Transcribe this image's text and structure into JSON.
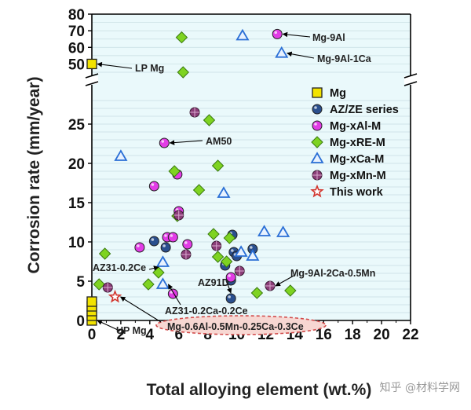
{
  "watermark": "知乎 @材料学网",
  "colors": {
    "plot_bg": "#eaf9fb",
    "grid": "#c7dde2",
    "axis": "#000000",
    "mg": "#f2e300",
    "az": "#2a4f8e",
    "mgal": "#e23ce6",
    "mgre": "#7ed321",
    "mgca": "#2a6fd6",
    "mgmn": "#8b3d78",
    "thiswork": "#d2352d",
    "ellipse": "#d24d4d",
    "ellipse_fill": "#f7d7d2"
  },
  "chart_data": {
    "type": "scatter",
    "xlabel": "Total alloying element (wt.%)",
    "ylabel": "Corrosion rate (mm/year)",
    "xlim": [
      0,
      22
    ],
    "x_ticks": [
      "0",
      "2",
      "4",
      "6",
      "8",
      "10",
      "12",
      "14",
      "16",
      "18",
      "20",
      "22"
    ],
    "ylim_lower": [
      0,
      29
    ],
    "ylim_upper": [
      45,
      80
    ],
    "y_ticks_lower": [
      "0",
      "5",
      "10",
      "15",
      "20",
      "25"
    ],
    "y_ticks_upper": [
      "50",
      "60",
      "70",
      "80"
    ],
    "axis_break": true,
    "grid": true,
    "legend_position": "right-upper",
    "series": [
      {
        "name": "Mg",
        "marker": "square",
        "color_key": "mg",
        "points": [
          [
            0,
            0
          ],
          [
            0,
            0.6
          ],
          [
            0,
            1.2
          ],
          [
            0,
            1.8
          ],
          [
            0,
            2.4
          ],
          [
            0,
            50
          ]
        ]
      },
      {
        "name": "AZ/ZE series",
        "marker": "circle",
        "color_key": "az",
        "points": [
          [
            4.3,
            10.1
          ],
          [
            5.1,
            9.3
          ],
          [
            9.2,
            7
          ],
          [
            9.7,
            10.9
          ],
          [
            9.8,
            8.7
          ],
          [
            10.0,
            8.2
          ],
          [
            11.1,
            9.1
          ],
          [
            9.6,
            5.1
          ],
          [
            9.6,
            2.8
          ]
        ]
      },
      {
        "name": "Mg-xAl-M",
        "marker": "circle",
        "color_key": "mgal",
        "points": [
          [
            3.3,
            9.3
          ],
          [
            4.3,
            17.1
          ],
          [
            5.2,
            10.6
          ],
          [
            5.6,
            10.6
          ],
          [
            6.0,
            13.9
          ],
          [
            5.9,
            18.6
          ],
          [
            5.0,
            22.6
          ],
          [
            6.6,
            9.7
          ],
          [
            5.6,
            3.4
          ],
          [
            9.6,
            5.5
          ],
          [
            12.8,
            68
          ]
        ]
      },
      {
        "name": "Mg-xRE-M",
        "marker": "diamond",
        "color_key": "mgre",
        "points": [
          [
            0.5,
            4.6
          ],
          [
            0.9,
            8.5
          ],
          [
            3.9,
            4.6
          ],
          [
            4.6,
            6.1
          ],
          [
            5.7,
            19
          ],
          [
            5.9,
            13.3
          ],
          [
            6.2,
            66
          ],
          [
            6.3,
            45
          ],
          [
            7.4,
            16.6
          ],
          [
            8.1,
            25.5
          ],
          [
            8.7,
            19.7
          ],
          [
            8.4,
            11
          ],
          [
            8.7,
            8.1
          ],
          [
            9.3,
            7.5
          ],
          [
            9.5,
            10.5
          ],
          [
            11.4,
            3.5
          ],
          [
            13.7,
            3.8
          ]
        ]
      },
      {
        "name": "Mg-xCa-M",
        "marker": "triangle",
        "color_key": "mgca",
        "points": [
          [
            2.0,
            20.9
          ],
          [
            4.9,
            7.4
          ],
          [
            4.9,
            4.6
          ],
          [
            9.1,
            16.2
          ],
          [
            10.3,
            8.7
          ],
          [
            11.1,
            8.2
          ],
          [
            11.9,
            11.3
          ],
          [
            13.2,
            11.2
          ],
          [
            10.4,
            67
          ],
          [
            13.1,
            56.5
          ]
        ]
      },
      {
        "name": "Mg-xMn-M",
        "marker": "circle-cross",
        "color_key": "mgmn",
        "points": [
          [
            1.1,
            4.2
          ],
          [
            6.0,
            13.4
          ],
          [
            6.5,
            8.4
          ],
          [
            7.1,
            26.5
          ],
          [
            8.6,
            9.5
          ],
          [
            10.2,
            6.3
          ],
          [
            12.3,
            4.4
          ]
        ]
      },
      {
        "name": "This work",
        "marker": "star",
        "color_key": "thiswork",
        "points": [
          [
            1.6,
            3.0
          ]
        ]
      }
    ],
    "annotations": [
      {
        "text": "LP Mg",
        "target": [
          0,
          50
        ]
      },
      {
        "text": "Mg-9Al",
        "target": [
          12.8,
          68
        ]
      },
      {
        "text": "Mg-9Al-1Ca",
        "target": [
          13.1,
          56.5
        ]
      },
      {
        "text": "AM50",
        "target": [
          5.0,
          22.6
        ]
      },
      {
        "text": "AZ31-0.2Ce",
        "target": [
          4.6,
          6.1
        ]
      },
      {
        "text": "AZ91D",
        "target": [
          9.6,
          2.8
        ]
      },
      {
        "text": "Mg-9Al-2Ca-0.5Mn",
        "target": [
          12.3,
          4.4
        ]
      },
      {
        "text": "AZ31-0.2Ca-0.2Ce",
        "target": [
          4.9,
          4.6
        ]
      },
      {
        "text": "UP Mg",
        "target": [
          0,
          0
        ]
      },
      {
        "text": "Mg-0.6Al-0.5Mn-0.25Ca-0.3Ce",
        "target": [
          1.6,
          3.0
        ]
      }
    ]
  }
}
